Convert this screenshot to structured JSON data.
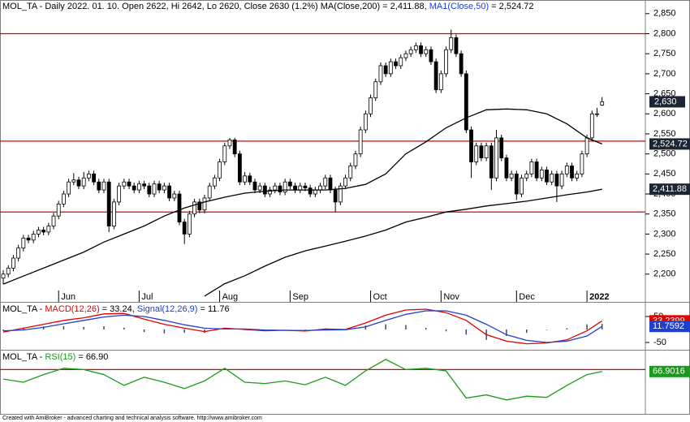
{
  "chart_data": [
    {
      "type": "candlestick",
      "title_parts": [
        {
          "text": "MOL_TA - Daily 2022. 01. 10. Open 2622, Hi 2642, Lo 2620, Close 2630 (1.2%) MA(Close,200) = 2,411.88, ",
          "color": "#000000"
        },
        {
          "text": "MA1(Close,50)",
          "color": "#1f3fd0"
        },
        {
          "text": " = 2,524.72",
          "color": "#000000"
        }
      ],
      "xlim": [
        -0.65,
        127.6
      ],
      "ylim": [
        2155,
        2880
      ],
      "yticks": [
        {
          "value": 2200,
          "label": "2,200"
        },
        {
          "value": 2250,
          "label": "2,250"
        },
        {
          "value": 2300,
          "label": "2,300"
        },
        {
          "value": 2350,
          "label": "2,350"
        },
        {
          "value": 2400,
          "label": "2,400"
        },
        {
          "value": 2450,
          "label": "2,450"
        },
        {
          "value": 2500,
          "label": "2,500"
        },
        {
          "value": 2550,
          "label": "2,550"
        },
        {
          "value": 2600,
          "label": "2,600"
        },
        {
          "value": 2650,
          "label": "2,650"
        },
        {
          "value": 2700,
          "label": "2,700"
        },
        {
          "value": 2750,
          "label": "2,750"
        },
        {
          "value": 2800,
          "label": "2,800"
        },
        {
          "value": 2850,
          "label": "2,850"
        }
      ],
      "xticks": [
        {
          "value": 11,
          "label": "Jun"
        },
        {
          "value": 27,
          "label": "Jul"
        },
        {
          "value": 43,
          "label": "Aug"
        },
        {
          "value": 57,
          "label": "Sep"
        },
        {
          "value": 73,
          "label": "Oct"
        },
        {
          "value": 87,
          "label": "Nov"
        },
        {
          "value": 102,
          "label": "Dec"
        },
        {
          "value": 116,
          "label": "2022"
        }
      ],
      "hlines": [
        2800,
        2532,
        2355
      ],
      "hline_color": "#e00000",
      "up_color": "#ffffff",
      "down_color": "#000000",
      "last_label": "2,630",
      "badge_color": "#1c2533",
      "open": [
        2190,
        2200,
        2215,
        2240,
        2265,
        2290,
        2285,
        2300,
        2310,
        2305,
        2320,
        2345,
        2375,
        2400,
        2430,
        2435,
        2420,
        2440,
        2450,
        2430,
        2410,
        2430,
        2320,
        2380,
        2420,
        2430,
        2420,
        2410,
        2425,
        2420,
        2400,
        2425,
        2410,
        2420,
        2390,
        2400,
        2330,
        2300,
        2350,
        2380,
        2360,
        2390,
        2420,
        2440,
        2480,
        2520,
        2535,
        2500,
        2430,
        2445,
        2430,
        2410,
        2420,
        2400,
        2410,
        2420,
        2405,
        2430,
        2420,
        2410,
        2420,
        2415,
        2400,
        2410,
        2420,
        2440,
        2410,
        2380,
        2420,
        2440,
        2470,
        2500,
        2560,
        2600,
        2640,
        2680,
        2720,
        2700,
        2730,
        2720,
        2740,
        2750,
        2760,
        2770,
        2750,
        2760,
        2730,
        2660,
        2700,
        2760,
        2790,
        2750,
        2700,
        2560,
        2480,
        2520,
        2490,
        2520,
        2440,
        2540,
        2490,
        2440,
        2450,
        2400,
        2440,
        2450,
        2480,
        2440,
        2460,
        2430,
        2450,
        2420,
        2450,
        2470,
        2440,
        2450,
        2500,
        2540,
        2600,
        2622
      ],
      "high": [
        2210,
        2222,
        2248,
        2273,
        2298,
        2298,
        2308,
        2318,
        2318,
        2328,
        2353,
        2383,
        2408,
        2438,
        2452,
        2443,
        2455,
        2458,
        2458,
        2438,
        2438,
        2438,
        2388,
        2428,
        2438,
        2438,
        2428,
        2433,
        2433,
        2428,
        2433,
        2433,
        2428,
        2428,
        2408,
        2408,
        2338,
        2358,
        2388,
        2388,
        2398,
        2428,
        2448,
        2488,
        2528,
        2540,
        2540,
        2508,
        2455,
        2453,
        2438,
        2428,
        2428,
        2418,
        2428,
        2428,
        2438,
        2438,
        2428,
        2428,
        2428,
        2423,
        2418,
        2428,
        2448,
        2448,
        2418,
        2428,
        2448,
        2478,
        2508,
        2568,
        2608,
        2648,
        2688,
        2728,
        2728,
        2738,
        2738,
        2748,
        2758,
        2768,
        2778,
        2778,
        2768,
        2768,
        2738,
        2708,
        2768,
        2810,
        2798,
        2758,
        2708,
        2568,
        2528,
        2528,
        2528,
        2528,
        2560,
        2548,
        2498,
        2458,
        2458,
        2448,
        2458,
        2488,
        2488,
        2468,
        2468,
        2458,
        2458,
        2458,
        2478,
        2478,
        2458,
        2508,
        2548,
        2608,
        2615,
        2642
      ],
      "low": [
        2175,
        2192,
        2207,
        2232,
        2257,
        2277,
        2277,
        2292,
        2297,
        2297,
        2312,
        2337,
        2367,
        2392,
        2422,
        2412,
        2412,
        2432,
        2422,
        2402,
        2402,
        2305,
        2312,
        2372,
        2412,
        2412,
        2402,
        2402,
        2412,
        2392,
        2392,
        2402,
        2402,
        2382,
        2382,
        2322,
        2275,
        2292,
        2342,
        2352,
        2352,
        2382,
        2412,
        2432,
        2472,
        2512,
        2492,
        2422,
        2422,
        2422,
        2402,
        2402,
        2392,
        2392,
        2402,
        2397,
        2397,
        2412,
        2402,
        2402,
        2407,
        2392,
        2392,
        2402,
        2412,
        2402,
        2355,
        2372,
        2412,
        2432,
        2462,
        2492,
        2552,
        2592,
        2632,
        2672,
        2692,
        2692,
        2712,
        2712,
        2732,
        2742,
        2752,
        2742,
        2742,
        2722,
        2652,
        2652,
        2692,
        2752,
        2742,
        2692,
        2552,
        2440,
        2472,
        2482,
        2482,
        2410,
        2432,
        2482,
        2432,
        2432,
        2385,
        2392,
        2432,
        2442,
        2432,
        2432,
        2422,
        2422,
        2380,
        2412,
        2442,
        2432,
        2432,
        2442,
        2492,
        2532,
        2592,
        2620
      ],
      "close": [
        2200,
        2215,
        2240,
        2265,
        2290,
        2285,
        2300,
        2310,
        2305,
        2320,
        2345,
        2375,
        2400,
        2430,
        2435,
        2420,
        2440,
        2450,
        2430,
        2410,
        2430,
        2320,
        2380,
        2420,
        2430,
        2420,
        2410,
        2425,
        2420,
        2400,
        2425,
        2410,
        2420,
        2390,
        2400,
        2330,
        2300,
        2350,
        2380,
        2360,
        2390,
        2420,
        2440,
        2480,
        2520,
        2535,
        2500,
        2430,
        2445,
        2430,
        2410,
        2420,
        2400,
        2410,
        2420,
        2405,
        2430,
        2420,
        2410,
        2420,
        2415,
        2400,
        2410,
        2420,
        2440,
        2410,
        2380,
        2420,
        2440,
        2470,
        2500,
        2560,
        2600,
        2640,
        2680,
        2720,
        2700,
        2730,
        2720,
        2740,
        2750,
        2760,
        2770,
        2750,
        2760,
        2730,
        2660,
        2700,
        2760,
        2790,
        2750,
        2700,
        2560,
        2480,
        2520,
        2490,
        2520,
        2440,
        2540,
        2490,
        2440,
        2450,
        2400,
        2440,
        2450,
        2480,
        2440,
        2460,
        2430,
        2450,
        2420,
        2450,
        2470,
        2440,
        2450,
        2500,
        2540,
        2600,
        2600,
        2630
      ],
      "series": [
        {
          "color": "#000000",
          "badge_color": "#1c2533",
          "last_label": "2,411.88",
          "x": [
            40,
            44,
            48,
            52,
            56,
            60,
            64,
            68,
            72,
            76,
            80,
            84,
            88,
            92,
            96,
            100,
            104,
            108,
            112,
            116,
            119
          ],
          "values": [
            2145,
            2176,
            2196,
            2220,
            2242,
            2258,
            2270,
            2282,
            2295,
            2310,
            2330,
            2342,
            2355,
            2362,
            2370,
            2376,
            2382,
            2390,
            2398,
            2405,
            2411.88
          ]
        },
        {
          "color": "#000000",
          "badge_color": "#1c2533",
          "last_label": "2,524.72",
          "x": [
            0,
            4,
            8,
            12,
            16,
            20,
            24,
            28,
            32,
            36,
            40,
            44,
            48,
            52,
            56,
            60,
            64,
            68,
            72,
            76,
            80,
            84,
            88,
            92,
            96,
            100,
            104,
            108,
            112,
            116,
            119
          ],
          "values": [
            2175,
            2195,
            2215,
            2235,
            2255,
            2280,
            2300,
            2320,
            2345,
            2365,
            2380,
            2392,
            2402,
            2407,
            2410,
            2410,
            2410,
            2414,
            2424,
            2450,
            2500,
            2530,
            2565,
            2590,
            2610,
            2612,
            2610,
            2600,
            2575,
            2540,
            2524.72
          ]
        }
      ]
    },
    {
      "type": "line",
      "title_parts": [
        {
          "text": "MOL_TA - ",
          "color": "#000000"
        },
        {
          "text": "MACD(12,26)",
          "color": "#e00000"
        },
        {
          "text": " = 33.24, ",
          "color": "#000000"
        },
        {
          "text": "Signal(12,26,9)",
          "color": "#1f3fd0"
        },
        {
          "text": " = 11.76",
          "color": "#000000"
        }
      ],
      "xlim": [
        -0.65,
        127.6
      ],
      "ylim": [
        -75,
        100
      ],
      "yticks": [
        50,
        -50
      ],
      "histogram": {
        "color": "#3a4a6a",
        "x": [
          0,
          4,
          8,
          12,
          16,
          20,
          24,
          28,
          32,
          36,
          40,
          44,
          48,
          52,
          56,
          60,
          64,
          68,
          72,
          76,
          80,
          84,
          88,
          92,
          96,
          100,
          104,
          108,
          112,
          116,
          119
        ],
        "values": [
          -5,
          7,
          12,
          13,
          10,
          12,
          7,
          -10,
          -15,
          -13,
          -13,
          3,
          -2,
          -3,
          0,
          -2,
          4,
          1,
          15,
          20,
          17,
          6,
          -7,
          -20,
          -40,
          -25,
          -13,
          -2,
          5,
          20,
          21.48
        ]
      },
      "series": [
        {
          "color": "#e00000",
          "badge_color": "#e00000",
          "last_label": "33.2399",
          "x": [
            0,
            4,
            8,
            12,
            16,
            20,
            24,
            28,
            32,
            36,
            40,
            44,
            48,
            52,
            56,
            60,
            64,
            68,
            72,
            76,
            80,
            84,
            88,
            92,
            96,
            100,
            104,
            108,
            112,
            116,
            119
          ],
          "values": [
            -10,
            5,
            20,
            35,
            45,
            60,
            62,
            40,
            20,
            5,
            -8,
            5,
            0,
            -5,
            -3,
            -6,
            2,
            0,
            25,
            55,
            75,
            78,
            65,
            35,
            -20,
            -45,
            -55,
            -52,
            -40,
            -5,
            33.2399
          ]
        },
        {
          "color": "#1f3fd0",
          "badge_color": "#1f3fd0",
          "last_label": "11.7592",
          "x": [
            0,
            4,
            8,
            12,
            16,
            20,
            24,
            28,
            32,
            36,
            40,
            44,
            48,
            52,
            56,
            60,
            64,
            68,
            72,
            76,
            80,
            84,
            88,
            92,
            96,
            100,
            104,
            108,
            112,
            116,
            119
          ],
          "values": [
            -5,
            -2,
            8,
            22,
            35,
            48,
            55,
            50,
            35,
            18,
            5,
            2,
            2,
            -2,
            -3,
            -4,
            -2,
            -1,
            10,
            35,
            58,
            72,
            72,
            55,
            20,
            -20,
            -42,
            -50,
            -45,
            -25,
            11.7592
          ]
        }
      ]
    },
    {
      "type": "line",
      "title_parts": [
        {
          "text": "MOL_TA - ",
          "color": "#000000"
        },
        {
          "text": "RSI(15)",
          "color": "#1a9a1a"
        },
        {
          "text": " = 66.90",
          "color": "#000000"
        }
      ],
      "xlim": [
        -0.65,
        127.6
      ],
      "ylim": [
        0,
        100
      ],
      "yticks": [],
      "hlines": [
        70
      ],
      "hline_color": "#e00000",
      "series": [
        {
          "color": "#1a9a1a",
          "badge_color": "#1a9a1a",
          "last_label": "66.9016",
          "x": [
            0,
            4,
            8,
            12,
            16,
            20,
            24,
            28,
            32,
            36,
            40,
            44,
            48,
            52,
            56,
            60,
            64,
            68,
            72,
            76,
            80,
            84,
            88,
            92,
            96,
            100,
            104,
            108,
            112,
            116,
            119
          ],
          "values": [
            55,
            50,
            62,
            72,
            70,
            62,
            45,
            58,
            50,
            40,
            52,
            72,
            50,
            48,
            52,
            46,
            58,
            45,
            68,
            86,
            70,
            72,
            68,
            25,
            30,
            22,
            28,
            26,
            45,
            62,
            66.9016
          ]
        }
      ]
    }
  ],
  "footer": "Created with AmiBroker - advanced charting and technical analysis software. http://www.amibroker.com"
}
